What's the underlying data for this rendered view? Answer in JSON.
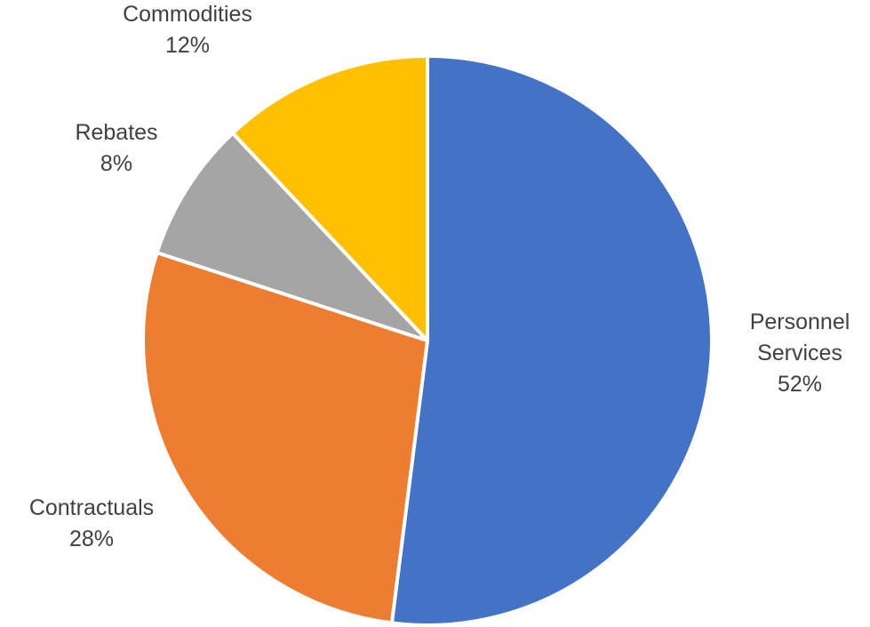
{
  "chart_data": {
    "type": "pie",
    "title": "",
    "slices": [
      {
        "name": "Personnel Services",
        "value": 52,
        "label_lines": [
          "Personnel",
          "Services"
        ],
        "percent_label": "52%",
        "color": "#4472C4"
      },
      {
        "name": "Contractuals",
        "value": 28,
        "label_lines": [
          "Contractuals"
        ],
        "percent_label": "28%",
        "color": "#ED7D31"
      },
      {
        "name": "Rebates",
        "value": 8,
        "label_lines": [
          "Rebates"
        ],
        "percent_label": "8%",
        "color": "#A5A5A5"
      },
      {
        "name": "Commodities",
        "value": 12,
        "label_lines": [
          "Commodities"
        ],
        "percent_label": "12%",
        "color": "#FFC000"
      }
    ],
    "start_angle_deg": 0,
    "direction": "clockwise",
    "slice_border_color": "#FFFFFF",
    "legend": "none"
  }
}
